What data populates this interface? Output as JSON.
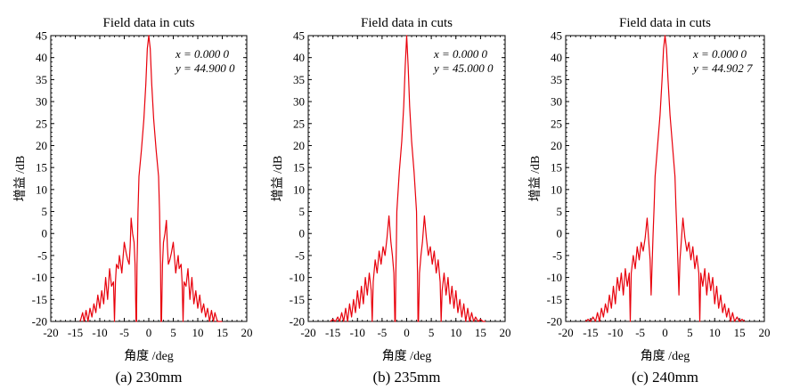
{
  "chart_data": [
    {
      "type": "line",
      "title": "Field data in cuts",
      "xlabel": "角度 /deg",
      "ylabel": "增益 /dB",
      "caption": "(a) 230mm",
      "xlim": [
        -20,
        20
      ],
      "ylim": [
        -20,
        45
      ],
      "xticks": [
        -20,
        -15,
        -10,
        -5,
        0,
        5,
        10,
        15,
        20
      ],
      "yticks": [
        -20,
        -15,
        -10,
        -5,
        0,
        5,
        10,
        15,
        20,
        25,
        30,
        35,
        40,
        45
      ],
      "cursor": {
        "x_label": "x = 0.000 0",
        "y_label": "y = 44.900 0",
        "x": 0.0,
        "y": 44.9
      },
      "series": [
        {
          "name": "gain",
          "color": "#e8000b",
          "x": [
            -14,
            -13.5,
            -13.2,
            -12.8,
            -12.4,
            -12.0,
            -11.6,
            -11.2,
            -10.8,
            -10.4,
            -10.0,
            -9.6,
            -9.2,
            -8.8,
            -8.4,
            -8.0,
            -7.6,
            -7.2,
            -7.0,
            -6.8,
            -6.6,
            -6.2,
            -6.0,
            -5.8,
            -5.5,
            -5.0,
            -4.6,
            -4.3,
            -4.0,
            -3.8,
            -3.6,
            -3.3,
            -3.0,
            -2.8,
            -2.6,
            -2.5,
            -2.4,
            -2.3,
            -2.2,
            -2.0,
            -1.5,
            -1.0,
            -0.6,
            -0.3,
            0.0,
            0.3,
            0.6,
            1.0,
            1.5,
            2.0,
            2.2,
            2.3,
            2.4,
            2.5,
            2.6,
            2.8,
            3.0,
            3.3,
            3.6,
            3.8,
            4.0,
            4.3,
            4.6,
            5.0,
            5.5,
            5.8,
            6.0,
            6.2,
            6.6,
            6.8,
            7.0,
            7.2,
            7.6,
            8.0,
            8.4,
            8.8,
            9.2,
            9.6,
            10.0,
            10.4,
            10.8,
            11.2,
            11.6,
            12.0,
            12.4,
            12.8,
            13.2,
            13.5,
            14.0,
            15.0
          ],
          "y": [
            -20,
            -18,
            -20,
            -17.5,
            -20,
            -17,
            -19,
            -16,
            -18,
            -14,
            -17,
            -13,
            -16,
            -10,
            -15,
            -8,
            -12,
            -11,
            -20,
            -11,
            -7,
            -8,
            -5,
            -6.5,
            -9,
            -2,
            -4.5,
            -6,
            -7,
            -3,
            3.5,
            0,
            -2,
            -7,
            -20,
            -20,
            -7,
            -2,
            5,
            13,
            19,
            26,
            34,
            42,
            45,
            42,
            34,
            26,
            19,
            13,
            5,
            -2,
            -7,
            -20,
            -20,
            -7,
            -2,
            0,
            3,
            -3,
            -7,
            -6,
            -4.5,
            -2,
            -9,
            -6.5,
            -5,
            -8,
            -7,
            -11,
            -20,
            -11,
            -12,
            -8,
            -15,
            -10,
            -16,
            -13,
            -17,
            -14,
            -18,
            -16,
            -19,
            -17,
            -20,
            -17.5,
            -20,
            -18,
            -20,
            -20
          ]
        }
      ]
    },
    {
      "type": "line",
      "title": "Field data in cuts",
      "xlabel": "角度 /deg",
      "ylabel": "增益 /dB",
      "caption": "(b) 235mm",
      "xlim": [
        -20,
        20
      ],
      "ylim": [
        -20,
        45
      ],
      "xticks": [
        -20,
        -15,
        -10,
        -5,
        0,
        5,
        10,
        15,
        20
      ],
      "yticks": [
        -20,
        -15,
        -10,
        -5,
        0,
        5,
        10,
        15,
        20,
        25,
        30,
        35,
        40,
        45
      ],
      "cursor": {
        "x_label": "x = 0.000 0",
        "y_label": "y = 45.000 0",
        "x": 0.0,
        "y": 45.0
      },
      "series": [
        {
          "name": "gain",
          "color": "#e8000b",
          "x": [
            -15.5,
            -15.0,
            -14.5,
            -14.0,
            -13.6,
            -13.2,
            -12.8,
            -12.4,
            -12.0,
            -11.6,
            -11.2,
            -10.8,
            -10.4,
            -10.0,
            -9.6,
            -9.2,
            -8.8,
            -8.4,
            -8.0,
            -7.6,
            -7.2,
            -7.0,
            -6.8,
            -6.4,
            -6.0,
            -5.6,
            -5.2,
            -4.8,
            -4.4,
            -4.0,
            -3.6,
            -3.2,
            -2.9,
            -2.6,
            -2.4,
            -2.3,
            -2.2,
            -2.1,
            -2.0,
            -1.5,
            -1.0,
            -0.6,
            -0.3,
            0.0,
            0.3,
            0.6,
            1.0,
            1.5,
            2.0,
            2.1,
            2.2,
            2.3,
            2.4,
            2.6,
            2.9,
            3.2,
            3.6,
            4.0,
            4.4,
            4.8,
            5.2,
            5.6,
            6.0,
            6.4,
            6.8,
            7.0,
            7.2,
            7.6,
            8.0,
            8.4,
            8.8,
            9.2,
            9.6,
            10.0,
            10.4,
            10.8,
            11.2,
            11.6,
            12.0,
            12.4,
            12.8,
            13.2,
            13.6,
            14.0,
            14.5,
            15.0,
            15.5,
            16.0
          ],
          "y": [
            -20,
            -19.5,
            -20,
            -19,
            -20,
            -18,
            -20,
            -17,
            -20,
            -16,
            -19,
            -15,
            -18,
            -13,
            -17,
            -12,
            -16,
            -10,
            -14,
            -9,
            -13,
            -20,
            -11,
            -6,
            -9,
            -4,
            -7,
            -3,
            -5,
            -1,
            4,
            -2,
            -5,
            -9,
            -20,
            -20,
            -9,
            -3,
            5,
            14,
            21,
            29,
            38,
            45,
            38,
            29,
            21,
            14,
            5,
            -3,
            -9,
            -20,
            -20,
            -9,
            -5,
            -2,
            4,
            -1,
            -5,
            -3,
            -7,
            -4,
            -9,
            -6,
            -11,
            -20,
            -13,
            -9,
            -14,
            -10,
            -16,
            -12,
            -17,
            -13,
            -18,
            -15,
            -19,
            -16,
            -20,
            -17,
            -20,
            -18,
            -20,
            -19,
            -20,
            -19.5,
            -20,
            -20
          ]
        }
      ]
    },
    {
      "type": "line",
      "title": "Field data in cuts",
      "xlabel": "角度 /deg",
      "ylabel": "增益 /dB",
      "caption": "(c) 240mm",
      "xlim": [
        -20,
        20
      ],
      "ylim": [
        -20,
        45
      ],
      "xticks": [
        -20,
        -15,
        -10,
        -5,
        0,
        5,
        10,
        15,
        20
      ],
      "yticks": [
        -20,
        -15,
        -10,
        -5,
        0,
        5,
        10,
        15,
        20,
        25,
        30,
        35,
        40,
        45
      ],
      "cursor": {
        "x_label": "x = 0.000 0",
        "y_label": "y = 44.902 7",
        "x": 0.0,
        "y": 44.9027
      },
      "series": [
        {
          "name": "gain",
          "color": "#e8000b",
          "x": [
            -16.0,
            -15.5,
            -15.0,
            -14.5,
            -14.0,
            -13.6,
            -13.2,
            -12.8,
            -12.4,
            -12.0,
            -11.6,
            -11.2,
            -10.8,
            -10.4,
            -10.0,
            -9.6,
            -9.2,
            -8.8,
            -8.4,
            -8.0,
            -7.6,
            -7.2,
            -7.0,
            -6.8,
            -6.4,
            -6.0,
            -5.6,
            -5.2,
            -4.8,
            -4.4,
            -4.0,
            -3.6,
            -3.2,
            -3.0,
            -2.8,
            -2.6,
            -2.4,
            -2.2,
            -2.0,
            -1.5,
            -1.0,
            -0.6,
            -0.3,
            0.0,
            0.3,
            0.6,
            1.0,
            1.5,
            2.0,
            2.2,
            2.4,
            2.6,
            2.8,
            3.0,
            3.2,
            3.6,
            4.0,
            4.4,
            4.8,
            5.2,
            5.6,
            6.0,
            6.4,
            6.8,
            7.0,
            7.2,
            7.6,
            8.0,
            8.4,
            8.8,
            9.2,
            9.6,
            10.0,
            10.4,
            10.8,
            11.2,
            11.6,
            12.0,
            12.4,
            12.8,
            13.2,
            13.6,
            14.0,
            14.5,
            15.0,
            15.5,
            16.0
          ],
          "y": [
            -20,
            -19.5,
            -20,
            -19,
            -20,
            -18,
            -20,
            -17,
            -19,
            -16,
            -18,
            -14,
            -17,
            -12,
            -16,
            -10,
            -13,
            -9,
            -14,
            -8,
            -12,
            -9,
            -20,
            -9,
            -5,
            -8,
            -3,
            -6,
            -2,
            -4,
            -1,
            3.5,
            -3,
            -6,
            -14,
            -7,
            0,
            6,
            13,
            20,
            27,
            35,
            42,
            45,
            42,
            35,
            27,
            20,
            13,
            6,
            0,
            -7,
            -14,
            -6,
            -3,
            3.5,
            -1,
            -4,
            -2,
            -6,
            -3,
            -8,
            -5,
            -9,
            -20,
            -9,
            -12,
            -8,
            -14,
            -9,
            -13,
            -10,
            -16,
            -12,
            -17,
            -14,
            -18,
            -16,
            -19,
            -17,
            -20,
            -18,
            -20,
            -19,
            -20,
            -19.5,
            -20
          ]
        }
      ]
    }
  ]
}
